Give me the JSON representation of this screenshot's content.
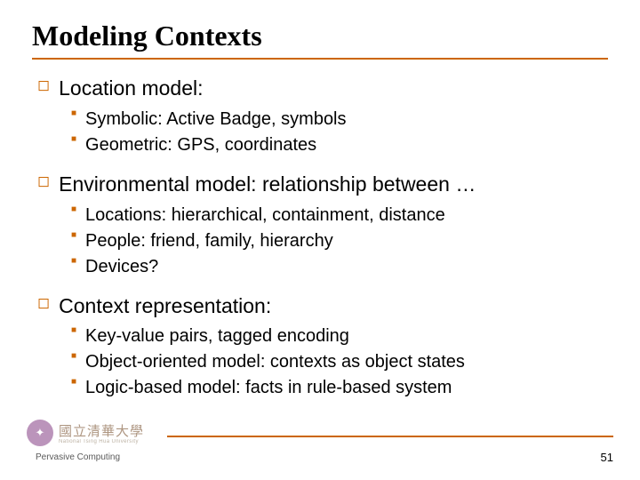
{
  "slide": {
    "title": "Modeling Contexts",
    "title_fontsize": 32,
    "title_color": "#000000",
    "title_underline_color": "#cc6600",
    "bullets": {
      "l1_color": "#cc6600",
      "l1_glyph": "◻",
      "l1_fontsize": 23,
      "l2_color": "#cc6600",
      "l2_glyph": "■",
      "l2_fontsize": 20
    },
    "items": [
      {
        "text": "Location model:",
        "children": [
          "Symbolic: Active Badge, symbols",
          "Geometric: GPS, coordinates"
        ]
      },
      {
        "text": "Environmental model: relationship between …",
        "children": [
          "Locations: hierarchical, containment, distance",
          "People: friend, family, hierarchy",
          "Devices?"
        ]
      },
      {
        "text": "Context representation:",
        "children": [
          "Key-value pairs, tagged encoding",
          "Object-oriented model: contexts as object states",
          "Logic-based model: facts in rule-based system"
        ]
      }
    ]
  },
  "footer": {
    "left_text": "Pervasive Computing",
    "left_fontsize": 10,
    "page_number": "51",
    "page_fontsize": 13,
    "line_color": "#cc6600",
    "logo_cn": "國立清華大學",
    "logo_cn_fontsize": 15,
    "logo_en": "National Tsing Hua University",
    "logo_en_fontsize": 6
  },
  "colors": {
    "background": "#ffffff",
    "body_text": "#000000"
  }
}
